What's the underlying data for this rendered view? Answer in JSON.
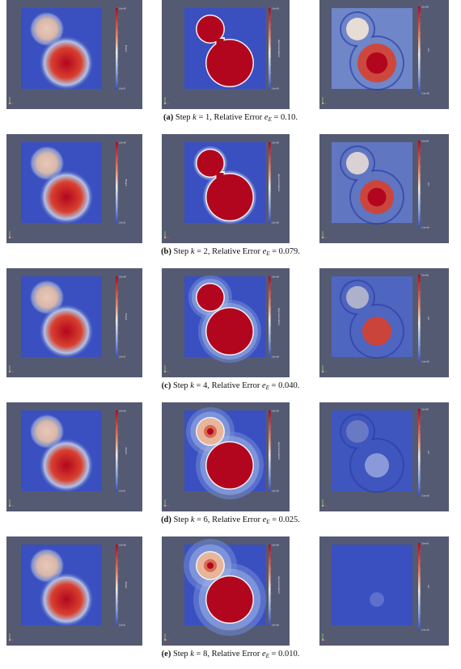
{
  "colors": {
    "panel_bg": "#545a72",
    "field_blue": "#3a4fc0",
    "field_red": "#b2061f",
    "field_pale": "#e8c8b8",
    "frame_white": "#ffffff"
  },
  "captions": [
    {
      "label": "(a)",
      "pre": "Step ",
      "k_var": "k",
      "k_text": " = 1,  Relative Error ",
      "e_var": "e",
      "e_sub": "E",
      "e_text": " = 0.10."
    },
    {
      "label": "(b)",
      "pre": "Step ",
      "k_var": "k",
      "k_text": " = 2,  Relative Error ",
      "e_var": "e",
      "e_sub": "E",
      "e_text": " = 0.079."
    },
    {
      "label": "(c)",
      "pre": "Step ",
      "k_var": "k",
      "k_text": " = 4,  Relative Error ",
      "e_var": "e",
      "e_sub": "E",
      "e_text": " = 0.040."
    },
    {
      "label": "(d)",
      "pre": "Step ",
      "k_var": "k",
      "k_text": " = 6,  Relative Error ",
      "e_var": "e",
      "e_sub": "E",
      "e_text": " = 0.025."
    },
    {
      "label": "(e)",
      "pre": "Step ",
      "k_var": "k",
      "k_text": " = 8,  Relative Error ",
      "e_var": "e",
      "e_sub": "E",
      "e_text": " = 0.010."
    }
  ],
  "colorbars": {
    "exact": {
      "top": "1.0e+00",
      "bottom": "1.0e-02",
      "label": "Exact"
    },
    "approx": {
      "top": "1.0e+00",
      "bottom": "1.0e+00",
      "label": "Approximation"
    },
    "error": {
      "top": "1.0e+00",
      "bottom": "-1.0e+00",
      "label": "err"
    }
  }
}
